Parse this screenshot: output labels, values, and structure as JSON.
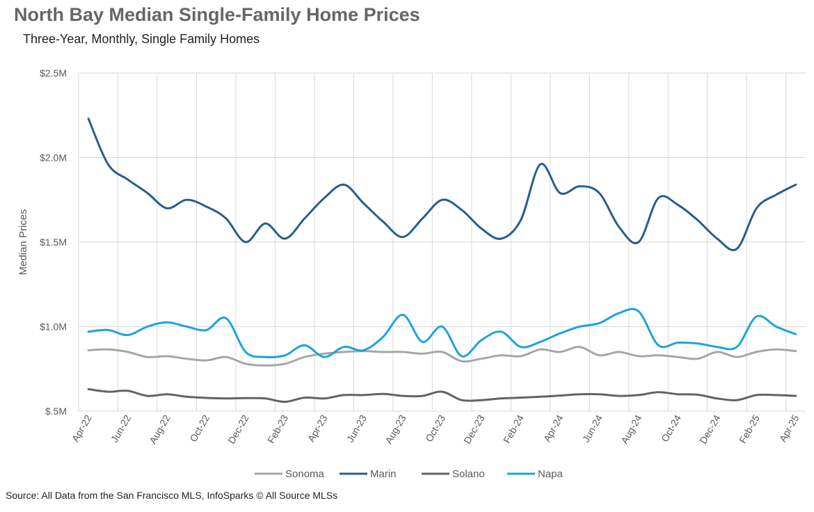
{
  "title": "North Bay Median Single-Family Home Prices",
  "subtitle": "Three-Year, Monthly, Single Family Homes",
  "source": "Source: All Data from the San Francisco MLS, InfoSparks © All Source MLSs",
  "chart_data": {
    "type": "line",
    "ylabel": "Median Prices",
    "ylim": [
      500000,
      2500000
    ],
    "yticks": [
      {
        "value": 500000,
        "label": "$.5M"
      },
      {
        "value": 1000000,
        "label": "$1.0M"
      },
      {
        "value": 1500000,
        "label": "$1.5M"
      },
      {
        "value": 2000000,
        "label": "$2.0M"
      },
      {
        "value": 2500000,
        "label": "$2.5M"
      }
    ],
    "grid": true,
    "legend_position": "bottom",
    "x": [
      "Apr-22",
      "May-22",
      "Jun-22",
      "Jul-22",
      "Aug-22",
      "Sep-22",
      "Oct-22",
      "Nov-22",
      "Dec-22",
      "Jan-23",
      "Feb-23",
      "Mar-23",
      "Apr-23",
      "May-23",
      "Jun-23",
      "Jul-23",
      "Aug-23",
      "Sep-23",
      "Oct-23",
      "Nov-23",
      "Dec-23",
      "Jan-24",
      "Feb-24",
      "Mar-24",
      "Apr-24",
      "May-24",
      "Jun-24",
      "Jul-24",
      "Aug-24",
      "Sep-24",
      "Oct-24",
      "Nov-24",
      "Dec-24",
      "Jan-25",
      "Feb-25",
      "Mar-25",
      "Apr-25"
    ],
    "xtick_labels": [
      "Apr-22",
      "Jun-22",
      "Aug-22",
      "Oct-22",
      "Dec-22",
      "Feb-23",
      "Apr-23",
      "Jun-23",
      "Aug-23",
      "Oct-23",
      "Dec-23",
      "Feb-24",
      "Apr-24",
      "Jun-24",
      "Aug-24",
      "Oct-24",
      "Dec-24",
      "Feb-25",
      "Apr-25"
    ],
    "series": [
      {
        "name": "Sonoma",
        "color": "#a6a6a6",
        "values": [
          860000,
          865000,
          850000,
          820000,
          825000,
          810000,
          800000,
          820000,
          780000,
          770000,
          780000,
          820000,
          840000,
          850000,
          855000,
          850000,
          850000,
          840000,
          850000,
          795000,
          810000,
          830000,
          825000,
          865000,
          850000,
          880000,
          830000,
          850000,
          825000,
          830000,
          820000,
          810000,
          850000,
          820000,
          850000,
          865000,
          855000
        ]
      },
      {
        "name": "Marin",
        "color": "#255e91",
        "values": [
          2230000,
          1960000,
          1870000,
          1790000,
          1700000,
          1750000,
          1710000,
          1640000,
          1500000,
          1610000,
          1520000,
          1640000,
          1760000,
          1840000,
          1730000,
          1620000,
          1530000,
          1640000,
          1750000,
          1690000,
          1580000,
          1520000,
          1630000,
          1960000,
          1790000,
          1830000,
          1790000,
          1590000,
          1500000,
          1760000,
          1720000,
          1630000,
          1520000,
          1460000,
          1700000,
          1780000,
          1840000
        ]
      },
      {
        "name": "Solano",
        "color": "#636363",
        "values": [
          630000,
          615000,
          620000,
          590000,
          600000,
          585000,
          578000,
          575000,
          577000,
          575000,
          555000,
          580000,
          575000,
          595000,
          595000,
          602000,
          590000,
          590000,
          615000,
          565000,
          565000,
          575000,
          580000,
          585000,
          592000,
          600000,
          600000,
          590000,
          595000,
          612000,
          600000,
          597000,
          575000,
          565000,
          595000,
          595000,
          590000
        ]
      },
      {
        "name": "Napa",
        "color": "#1ca3de",
        "values": [
          970000,
          980000,
          950000,
          1000000,
          1025000,
          1000000,
          980000,
          1050000,
          850000,
          820000,
          830000,
          890000,
          820000,
          880000,
          860000,
          940000,
          1070000,
          910000,
          1000000,
          825000,
          920000,
          970000,
          880000,
          910000,
          960000,
          1000000,
          1020000,
          1080000,
          1090000,
          890000,
          905000,
          900000,
          880000,
          880000,
          1060000,
          1000000,
          955000
        ]
      }
    ]
  }
}
